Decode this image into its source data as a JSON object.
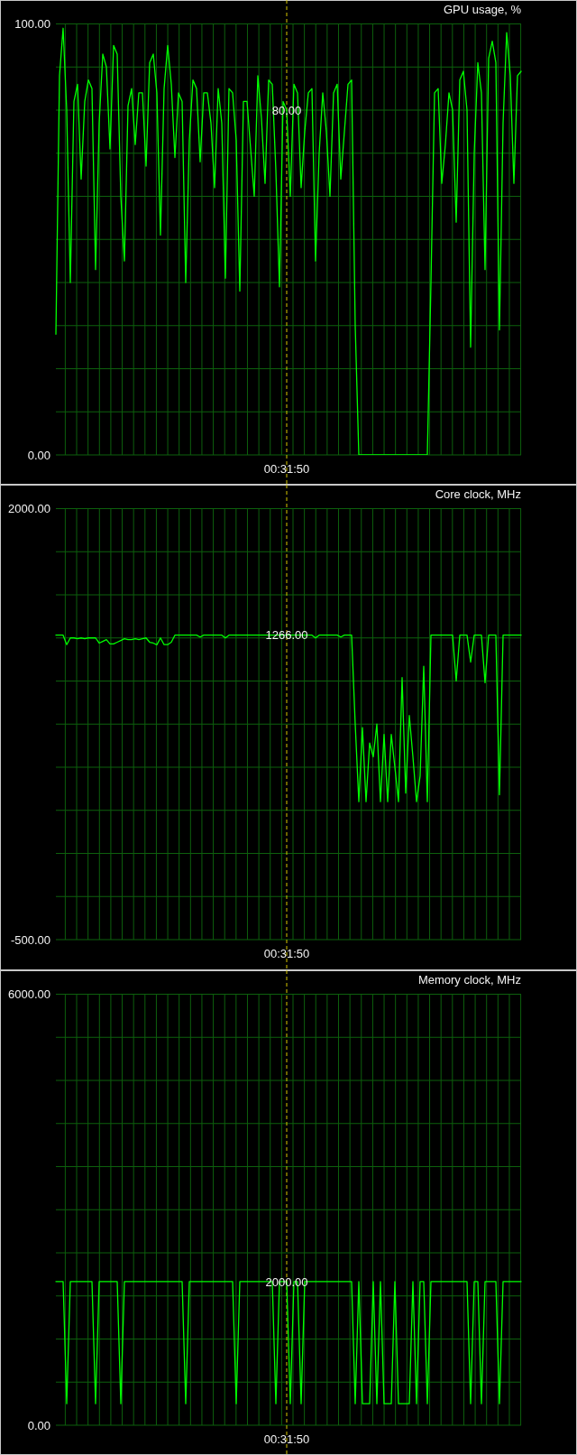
{
  "chart_data": [
    {
      "type": "line",
      "title": "GPU usage, %",
      "categories": [
        null,
        null,
        null,
        null,
        null,
        null,
        null,
        null,
        null,
        null,
        null,
        null,
        null,
        null,
        null,
        null,
        null,
        null,
        null,
        null,
        null,
        null,
        null,
        null,
        null,
        null,
        null,
        null,
        null,
        null,
        null,
        null,
        null,
        null,
        null,
        null,
        null,
        null,
        null,
        null,
        null,
        null,
        null,
        null,
        null,
        null,
        null,
        null,
        null,
        null,
        null,
        null,
        null,
        null,
        null,
        null,
        null,
        null,
        null,
        null,
        null,
        null,
        null,
        null,
        "00:31:50",
        null,
        null,
        null,
        null,
        null,
        null,
        null,
        null,
        null,
        null,
        null,
        null,
        null,
        null,
        null,
        null,
        null,
        null,
        null,
        null,
        null,
        null,
        null,
        null,
        null,
        null,
        null,
        null,
        null,
        null,
        null,
        null,
        null,
        null,
        null,
        null,
        null,
        null,
        null,
        null,
        null,
        null,
        null,
        null,
        null,
        null,
        null,
        null,
        null,
        null,
        null,
        null,
        null,
        null,
        null,
        null,
        null,
        null,
        null,
        null,
        null,
        null,
        null,
        null,
        null
      ],
      "values": [
        28,
        88,
        99,
        80,
        40,
        82,
        86,
        64,
        82,
        87,
        85,
        43,
        77,
        93,
        90,
        71,
        95,
        93,
        60,
        45,
        81,
        85,
        72,
        84,
        84,
        67,
        91,
        93,
        84,
        51,
        85,
        95,
        86,
        69,
        84,
        82,
        40,
        73,
        87,
        85,
        68,
        84,
        84,
        77,
        62,
        85,
        77,
        41,
        85,
        84,
        73,
        38,
        82,
        82,
        71,
        60,
        88,
        78,
        63,
        87,
        86,
        66,
        39,
        82,
        80,
        60,
        86,
        84,
        62,
        75,
        84,
        85,
        45,
        70,
        84,
        75,
        60,
        84,
        86,
        64,
        75,
        86,
        87,
        30,
        0,
        0,
        0,
        0,
        0,
        0,
        0,
        0,
        0,
        0,
        0,
        0,
        0,
        0,
        0,
        0,
        0,
        0,
        0,
        0,
        40,
        84,
        85,
        63,
        72,
        84,
        80,
        54,
        87,
        89,
        80,
        25,
        70,
        91,
        84,
        43,
        92,
        96,
        91,
        29,
        77,
        98,
        88,
        63,
        88,
        89
      ],
      "color": "#00ff00",
      "ylim": [
        0,
        100
      ],
      "yticks": [
        {
          "value": 0,
          "label": "0.00"
        },
        {
          "value": 10,
          "label": null
        },
        {
          "value": 20,
          "label": null
        },
        {
          "value": 30,
          "label": null
        },
        {
          "value": 40,
          "label": null
        },
        {
          "value": 50,
          "label": null
        },
        {
          "value": 60,
          "label": null
        },
        {
          "value": 70,
          "label": null
        },
        {
          "value": 80,
          "label": null
        },
        {
          "value": 90,
          "label": null
        },
        {
          "value": 100,
          "label": "100.00"
        }
      ],
      "grid": true,
      "ref_lines": [
        {
          "axis": "x",
          "value": "00:31:50",
          "color": "#d8c800",
          "line_style": "dashed"
        }
      ],
      "annotations": [
        {
          "text": "80.00",
          "x": "00:31:50",
          "y": 80
        }
      ]
    },
    {
      "type": "line",
      "title": "Core clock, MHz",
      "categories": [
        null,
        null,
        null,
        null,
        null,
        null,
        null,
        null,
        null,
        null,
        null,
        null,
        null,
        null,
        null,
        null,
        null,
        null,
        null,
        null,
        null,
        null,
        null,
        null,
        null,
        null,
        null,
        null,
        null,
        null,
        null,
        null,
        null,
        null,
        null,
        null,
        null,
        null,
        null,
        null,
        null,
        null,
        null,
        null,
        null,
        null,
        null,
        null,
        null,
        null,
        null,
        null,
        null,
        null,
        null,
        null,
        null,
        null,
        null,
        null,
        null,
        null,
        null,
        null,
        "00:31:50",
        null,
        null,
        null,
        null,
        null,
        null,
        null,
        null,
        null,
        null,
        null,
        null,
        null,
        null,
        null,
        null,
        null,
        null,
        null,
        null,
        null,
        null,
        null,
        null,
        null,
        null,
        null,
        null,
        null,
        null,
        null,
        null,
        null,
        null,
        null,
        null,
        null,
        null,
        null,
        null,
        null,
        null,
        null,
        null,
        null,
        null,
        null,
        null,
        null,
        null,
        null,
        null,
        null,
        null,
        null,
        null,
        null,
        null,
        null,
        null,
        null,
        null,
        null,
        null,
        null
      ],
      "values": [
        1266,
        1266,
        1266,
        1211,
        1250,
        1250,
        1245,
        1250,
        1245,
        1250,
        1250,
        1250,
        1220,
        1230,
        1240,
        1215,
        1215,
        1225,
        1235,
        1245,
        1240,
        1240,
        1245,
        1240,
        1245,
        1250,
        1225,
        1220,
        1210,
        1250,
        1211,
        1211,
        1225,
        1266,
        1266,
        1266,
        1266,
        1266,
        1266,
        1266,
        1255,
        1266,
        1266,
        1266,
        1266,
        1266,
        1266,
        1250,
        1266,
        1266,
        1266,
        1266,
        1266,
        1266,
        1266,
        1266,
        1266,
        1266,
        1266,
        1266,
        1266,
        1266,
        1266,
        1266,
        1266,
        1266,
        1266,
        1266,
        1266,
        1266,
        1266,
        1266,
        1250,
        1266,
        1266,
        1266,
        1266,
        1266,
        1266,
        1255,
        1266,
        1266,
        1266,
        750,
        300,
        730,
        300,
        640,
        560,
        750,
        300,
        690,
        300,
        690,
        500,
        300,
        1020,
        350,
        800,
        560,
        300,
        450,
        1085,
        300,
        1266,
        1266,
        1266,
        1266,
        1266,
        1266,
        1266,
        1000,
        1266,
        1266,
        1266,
        1110,
        1266,
        1266,
        1266,
        990,
        1266,
        1266,
        1266,
        340,
        1266,
        1266,
        1266,
        1266,
        1266,
        1266
      ],
      "color": "#00ff00",
      "ylim": [
        -500,
        2000
      ],
      "yticks": [
        {
          "value": -500,
          "label": "-500.00"
        },
        {
          "value": -250,
          "label": null
        },
        {
          "value": 0,
          "label": null
        },
        {
          "value": 250,
          "label": null
        },
        {
          "value": 500,
          "label": null
        },
        {
          "value": 750,
          "label": null
        },
        {
          "value": 1000,
          "label": null
        },
        {
          "value": 1250,
          "label": null
        },
        {
          "value": 1500,
          "label": null
        },
        {
          "value": 1750,
          "label": null
        },
        {
          "value": 2000,
          "label": "2000.00"
        }
      ],
      "grid": true,
      "ref_lines": [
        {
          "axis": "x",
          "value": "00:31:50",
          "color": "#d8c800",
          "line_style": "dashed"
        }
      ],
      "annotations": [
        {
          "text": "1266.00",
          "x": "00:31:50",
          "y": 1266
        }
      ]
    },
    {
      "type": "line",
      "title": "Memory clock, MHz",
      "categories": [
        null,
        null,
        null,
        null,
        null,
        null,
        null,
        null,
        null,
        null,
        null,
        null,
        null,
        null,
        null,
        null,
        null,
        null,
        null,
        null,
        null,
        null,
        null,
        null,
        null,
        null,
        null,
        null,
        null,
        null,
        null,
        null,
        null,
        null,
        null,
        null,
        null,
        null,
        null,
        null,
        null,
        null,
        null,
        null,
        null,
        null,
        null,
        null,
        null,
        null,
        null,
        null,
        null,
        null,
        null,
        null,
        null,
        null,
        null,
        null,
        null,
        null,
        null,
        null,
        "00:31:50",
        null,
        null,
        null,
        null,
        null,
        null,
        null,
        null,
        null,
        null,
        null,
        null,
        null,
        null,
        null,
        null,
        null,
        null,
        null,
        null,
        null,
        null,
        null,
        null,
        null,
        null,
        null,
        null,
        null,
        null,
        null,
        null,
        null,
        null,
        null,
        null,
        null,
        null,
        null,
        null,
        null,
        null,
        null,
        null,
        null,
        null,
        null,
        null,
        null,
        null,
        null,
        null,
        null,
        null,
        null,
        null,
        null,
        null,
        null,
        null,
        null,
        null,
        null,
        null,
        null
      ],
      "values": [
        2000,
        2000,
        2000,
        300,
        2000,
        2000,
        2000,
        2000,
        2000,
        2000,
        2000,
        300,
        2000,
        2000,
        2000,
        2000,
        2000,
        2000,
        300,
        2000,
        2000,
        2000,
        2000,
        2000,
        2000,
        2000,
        2000,
        2000,
        2000,
        2000,
        2000,
        2000,
        2000,
        2000,
        2000,
        2000,
        300,
        2000,
        2000,
        2000,
        2000,
        2000,
        2000,
        2000,
        2000,
        2000,
        2000,
        2000,
        2000,
        2000,
        300,
        2000,
        2000,
        2000,
        2000,
        2000,
        2000,
        2000,
        2000,
        2000,
        2000,
        300,
        2000,
        2000,
        2000,
        300,
        2000,
        2000,
        300,
        2000,
        2000,
        2000,
        2000,
        2000,
        2000,
        2000,
        2000,
        2000,
        2000,
        2000,
        2000,
        2000,
        2000,
        300,
        2000,
        300,
        300,
        300,
        2000,
        300,
        2000,
        300,
        300,
        300,
        2000,
        300,
        300,
        300,
        300,
        2000,
        300,
        2000,
        2000,
        300,
        2000,
        2000,
        2000,
        2000,
        2000,
        2000,
        2000,
        2000,
        2000,
        2000,
        2000,
        300,
        2000,
        2000,
        300,
        2000,
        2000,
        2000,
        2000,
        300,
        2000,
        2000,
        2000,
        2000,
        2000,
        2000
      ],
      "color": "#00ff00",
      "ylim": [
        0,
        6000
      ],
      "yticks": [
        {
          "value": 0,
          "label": "0.00"
        },
        {
          "value": 600,
          "label": null
        },
        {
          "value": 1200,
          "label": null
        },
        {
          "value": 1800,
          "label": null
        },
        {
          "value": 2400,
          "label": null
        },
        {
          "value": 3000,
          "label": null
        },
        {
          "value": 3600,
          "label": null
        },
        {
          "value": 4200,
          "label": null
        },
        {
          "value": 4800,
          "label": null
        },
        {
          "value": 5400,
          "label": null
        },
        {
          "value": 6000,
          "label": "6000.00"
        }
      ],
      "grid": true,
      "ref_lines": [
        {
          "axis": "x",
          "value": "00:31:50",
          "color": "#d8c800",
          "line_style": "dashed"
        }
      ],
      "annotations": [
        {
          "text": "2000.00",
          "x": "00:31:50",
          "y": 2000
        }
      ]
    }
  ]
}
